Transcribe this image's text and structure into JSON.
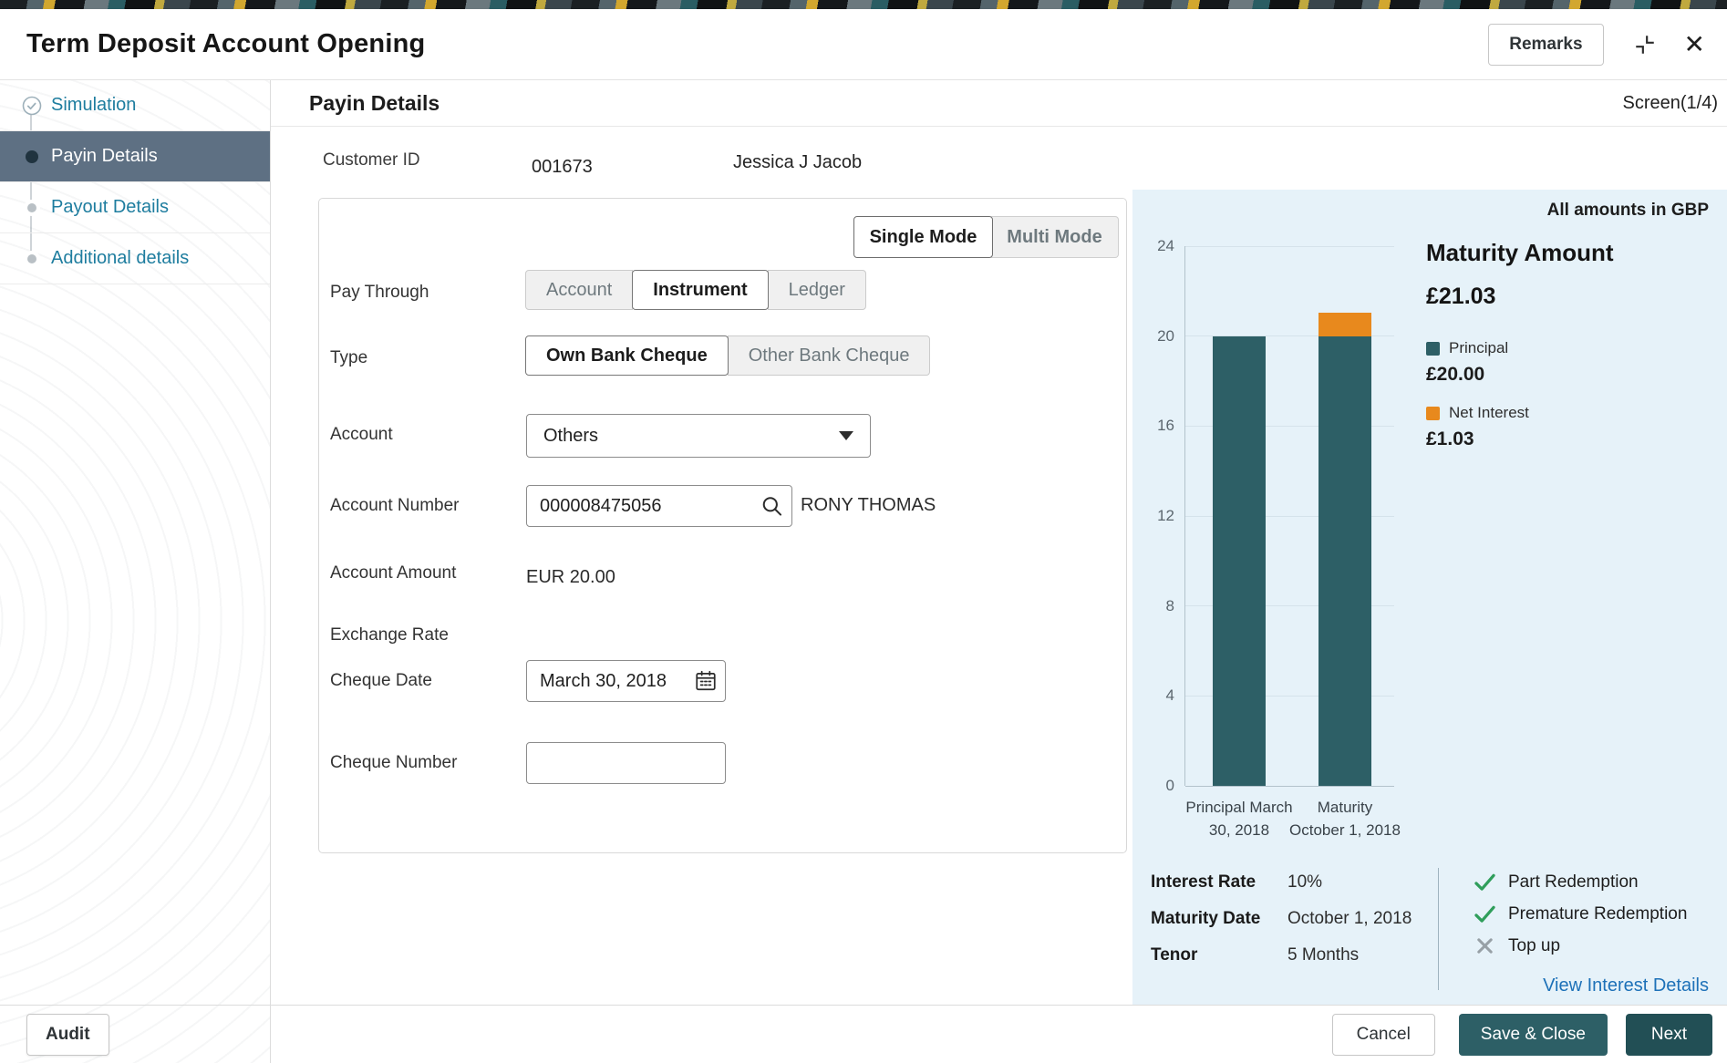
{
  "header": {
    "title": "Term Deposit Account Opening",
    "remarks_label": "Remarks"
  },
  "sidebar": {
    "items": [
      {
        "label": "Simulation",
        "state": "done"
      },
      {
        "label": "Payin Details",
        "state": "active"
      },
      {
        "label": "Payout Details",
        "state": "todo"
      },
      {
        "label": "Additional details",
        "state": "todo"
      }
    ],
    "audit_label": "Audit"
  },
  "page": {
    "title": "Payin Details",
    "screen_indicator": "Screen(1/4)"
  },
  "customer": {
    "label": "Customer ID",
    "id": "001673",
    "name": "Jessica J Jacob"
  },
  "form": {
    "mode_toggle": {
      "options": [
        "Single Mode",
        "Multi Mode"
      ],
      "selected": "Single Mode"
    },
    "pay_through": {
      "label": "Pay Through",
      "options": [
        "Account",
        "Instrument",
        "Ledger"
      ],
      "selected": "Instrument"
    },
    "type": {
      "label": "Type",
      "options": [
        "Own Bank Cheque",
        "Other Bank Cheque"
      ],
      "selected": "Own Bank Cheque"
    },
    "account": {
      "label": "Account",
      "value": "Others"
    },
    "account_number": {
      "label": "Account Number",
      "value": "000008475056",
      "holder_name": "RONY THOMAS"
    },
    "account_amount": {
      "label": "Account Amount",
      "value": "EUR 20.00"
    },
    "exchange_rate": {
      "label": "Exchange Rate",
      "value": ""
    },
    "cheque_date": {
      "label": "Cheque Date",
      "value": "March 30, 2018"
    },
    "cheque_number": {
      "label": "Cheque Number",
      "value": ""
    }
  },
  "summary": {
    "currency_note": "All amounts in GBP",
    "maturity": {
      "title": "Maturity Amount",
      "amount": "£21.03"
    },
    "legend": [
      {
        "name": "Principal",
        "amount": "£20.00",
        "color": "#2d5f66"
      },
      {
        "name": "Net Interest",
        "amount": "£1.03",
        "color": "#e8891d"
      }
    ],
    "details": [
      {
        "label": "Interest Rate",
        "value": "10%"
      },
      {
        "label": "Maturity Date",
        "value": "October 1, 2018"
      },
      {
        "label": "Tenor",
        "value": "5 Months"
      }
    ],
    "flags": [
      {
        "label": "Part Redemption",
        "enabled": true
      },
      {
        "label": "Premature Redemption",
        "enabled": true
      },
      {
        "label": "Top up",
        "enabled": false
      }
    ],
    "link": "View Interest Details"
  },
  "chart_data": {
    "type": "bar",
    "stacked": true,
    "categories": [
      [
        "Principal March",
        "30, 2018"
      ],
      [
        "Maturity",
        "October 1, 2018"
      ]
    ],
    "series": [
      {
        "name": "Principal",
        "values": [
          20,
          20
        ],
        "color": "#2d5f66"
      },
      {
        "name": "Net Interest",
        "values": [
          0,
          1.03
        ],
        "color": "#e8891d"
      }
    ],
    "ylim": [
      0,
      24
    ],
    "yticks": [
      0,
      4,
      8,
      12,
      16,
      20,
      24
    ],
    "grid": true,
    "legend_position": "right"
  },
  "footer": {
    "cancel": "Cancel",
    "save_close": "Save & Close",
    "next": "Next"
  },
  "icons": {
    "close_glyph": "✕"
  },
  "colors": {
    "primary_teal": "#2d5f66",
    "primary_teal_dark": "#224f55",
    "accent_orange": "#e8891d",
    "panel_blue": "#e6f2f9",
    "active_step_bg": "#5e7083",
    "link_teal": "#1e7d9f"
  }
}
